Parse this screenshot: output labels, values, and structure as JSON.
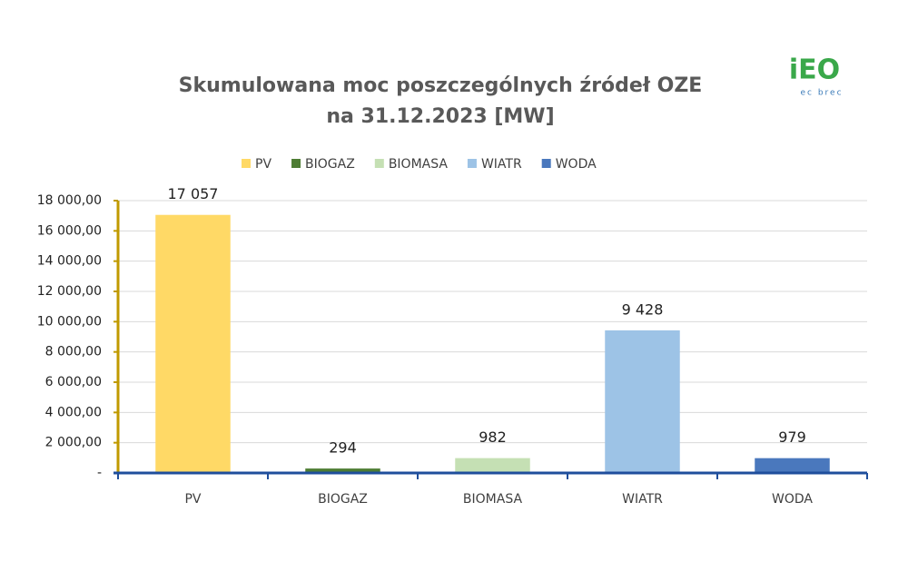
{
  "chart_data": {
    "type": "bar",
    "title": [
      "Skumulowana moc poszczególnych źródeł OZE",
      "na 31.12.2023 [MW]"
    ],
    "logo": {
      "mark": "iEO",
      "caption": "ec brec"
    },
    "categories": [
      "PV",
      "BIOGAZ",
      "BIOMASA",
      "WIATR",
      "WODA"
    ],
    "values": [
      17057,
      294,
      982,
      9428,
      979
    ],
    "value_labels": [
      "17 057",
      "294",
      "982",
      "9 428",
      "979"
    ],
    "colors": [
      "#ffd966",
      "#4e7d34",
      "#c5e0b4",
      "#9dc3e6",
      "#4a78bd"
    ],
    "ylim": [
      0,
      18000
    ],
    "yticks": [
      {
        "value": 0,
        "label": "-"
      },
      {
        "value": 2000,
        "label": "2 000,00"
      },
      {
        "value": 4000,
        "label": "4 000,00"
      },
      {
        "value": 6000,
        "label": "6 000,00"
      },
      {
        "value": 8000,
        "label": "8 000,00"
      },
      {
        "value": 10000,
        "label": "10 000,00"
      },
      {
        "value": 12000,
        "label": "12 000,00"
      },
      {
        "value": 14000,
        "label": "14 000,00"
      },
      {
        "value": 16000,
        "label": "16 000,00"
      },
      {
        "value": 18000,
        "label": "18 000,00"
      }
    ],
    "grid": true,
    "legend": "top"
  }
}
